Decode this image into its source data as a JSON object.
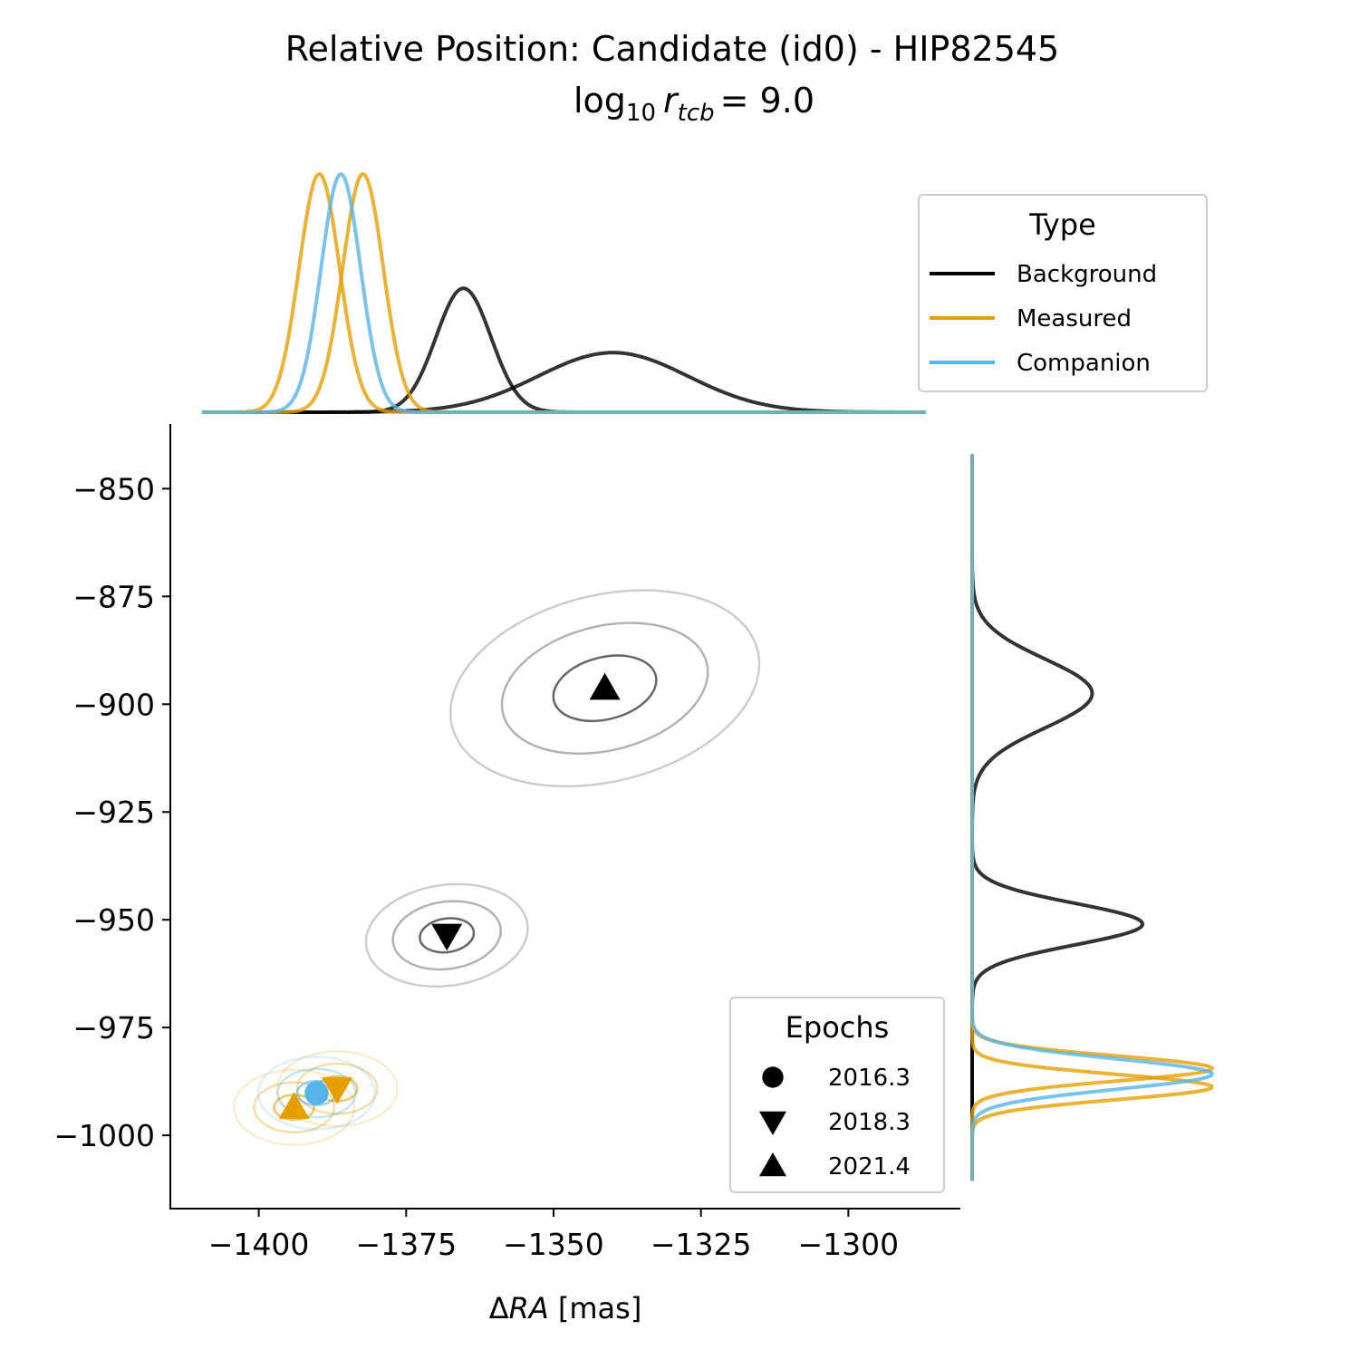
{
  "chart_data": {
    "type": "scatter",
    "title": "Relative Position: Candidate (id0) - HIP82545",
    "subtitle": {
      "prefix": "log",
      "base": "10",
      "symbol": "r",
      "subscript": "tcb",
      "equals": "= 9.0"
    },
    "xlabel": {
      "delta": "Δ",
      "var": "RA",
      "unit": " [mas]"
    },
    "ylabel": "",
    "xlim": [
      -1415,
      -1281
    ],
    "ylim": [
      -1017,
      -835
    ],
    "x_ticks": [
      -1400,
      -1375,
      -1350,
      -1325,
      -1300
    ],
    "x_tick_labels": [
      "−1400",
      "−1375",
      "−1350",
      "−1325",
      "−1300"
    ],
    "y_ticks": [
      -850,
      -875,
      -900,
      -925,
      -950,
      -975,
      -1000
    ],
    "y_tick_labels": [
      "−850",
      "−875",
      "−900",
      "−925",
      "−950",
      "−975",
      "−1000"
    ],
    "colors": {
      "Background": "#000000",
      "Measured": "#E69F00",
      "Companion": "#56B4E9"
    },
    "type_legend": {
      "title": "Type",
      "placement": "top-right",
      "entries": [
        {
          "label": "Background",
          "color": "#000000"
        },
        {
          "label": "Measured",
          "color": "#E69F00"
        },
        {
          "label": "Companion",
          "color": "#56B4E9"
        }
      ]
    },
    "epoch_legend": {
      "title": "Epochs",
      "placement": "lower-right",
      "entries": [
        {
          "label": "2016.3",
          "marker": "circle"
        },
        {
          "label": "2018.3",
          "marker": "triangle-down"
        },
        {
          "label": "2021.4",
          "marker": "triangle-up"
        }
      ]
    },
    "points": [
      {
        "type": "Background",
        "epoch": "2018.3",
        "marker": "triangle-down",
        "x": -1368.1,
        "y": -953.6,
        "sx": 4.6,
        "sy": 3.9,
        "rot": -8
      },
      {
        "type": "Background",
        "epoch": "2021.4",
        "marker": "triangle-up",
        "x": -1341.3,
        "y": -896.3,
        "sx": 8.9,
        "sy": 7.2,
        "rot": -14
      },
      {
        "type": "Measured",
        "epoch": "2018.3",
        "marker": "triangle-down",
        "x": -1386.7,
        "y": -989.2,
        "sx": 3.4,
        "sy": 2.9,
        "rot": 0
      },
      {
        "type": "Measured",
        "epoch": "2021.4",
        "marker": "triangle-up",
        "x": -1394.0,
        "y": -993.5,
        "sx": 3.4,
        "sy": 2.9,
        "rot": 0
      },
      {
        "type": "Companion",
        "epoch": "2016.3",
        "marker": "circle",
        "x": -1390.2,
        "y": -990.2,
        "sx": 3.3,
        "sy": 2.8,
        "rot": 0
      }
    ],
    "contour_levels_sigma": [
      1,
      2,
      3
    ],
    "marginal_x": [
      {
        "type": "Background",
        "mean": -1366.3,
        "sd": 4.6,
        "peak": 0.52
      },
      {
        "type": "Background",
        "mean": -1341.3,
        "sd": 12.5,
        "peak": 0.25
      },
      {
        "type": "Measured",
        "mean": -1390.4,
        "sd": 3.4,
        "peak": 1.0
      },
      {
        "type": "Measured",
        "mean": -1383.1,
        "sd": 3.4,
        "peak": 1.0
      },
      {
        "type": "Companion",
        "mean": -1386.8,
        "sd": 3.3,
        "peak": 1.0
      }
    ],
    "marginal_y": [
      {
        "type": "Background",
        "mean": -897.5,
        "sd": 8.0,
        "peak": 0.5
      },
      {
        "type": "Background",
        "mean": -951.0,
        "sd": 4.8,
        "peak": 0.71
      },
      {
        "type": "Measured",
        "mean": -984.5,
        "sd": 2.9,
        "peak": 1.0
      },
      {
        "type": "Measured",
        "mean": -988.8,
        "sd": 2.9,
        "peak": 1.0
      },
      {
        "type": "Companion",
        "mean": -985.8,
        "sd": 3.5,
        "peak": 1.0
      }
    ]
  }
}
